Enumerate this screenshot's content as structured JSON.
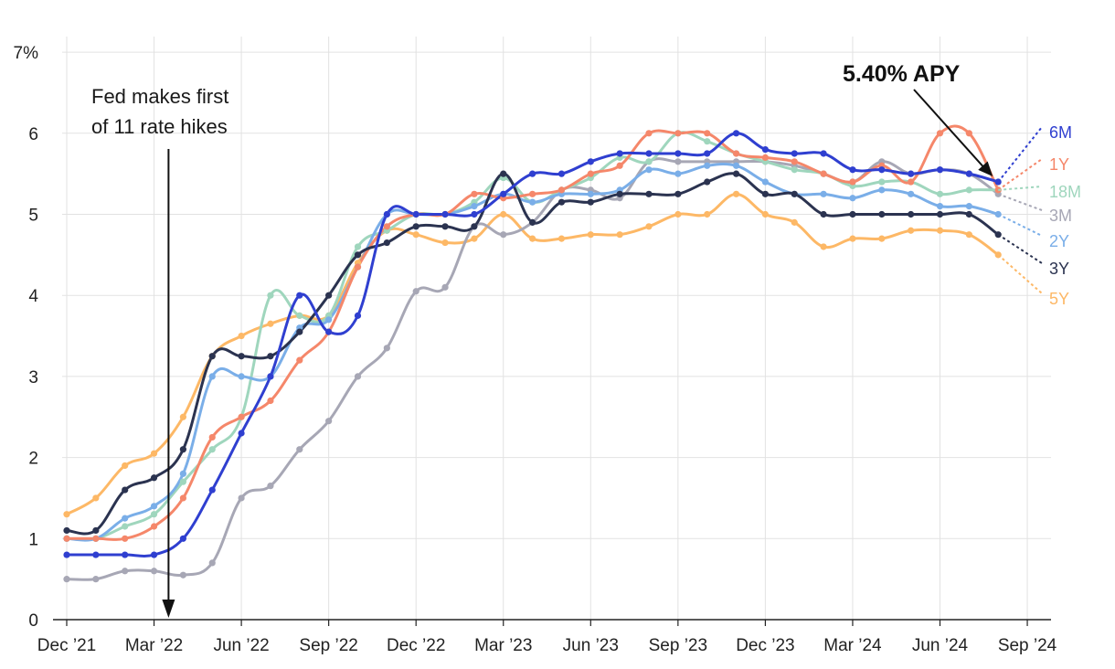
{
  "chart_data": {
    "type": "line",
    "x_format": "year-month",
    "y_ticks": [
      "0",
      "1",
      "2",
      "3",
      "4",
      "5",
      "6",
      "7%"
    ],
    "ylim": [
      0,
      7
    ],
    "x_ticks": [
      {
        "date": "2021-12",
        "label": "Dec ’21"
      },
      {
        "date": "2022-03",
        "label": "Mar ’22"
      },
      {
        "date": "2022-06",
        "label": "Jun ’22"
      },
      {
        "date": "2022-09",
        "label": "Sep ’22"
      },
      {
        "date": "2022-12",
        "label": "Dec ’22"
      },
      {
        "date": "2023-03",
        "label": "Mar ’23"
      },
      {
        "date": "2023-06",
        "label": "Jun ’23"
      },
      {
        "date": "2023-09",
        "label": "Sep ’23"
      },
      {
        "date": "2023-12",
        "label": "Dec ’23"
      },
      {
        "date": "2024-03",
        "label": "Mar ’24"
      },
      {
        "date": "2024-06",
        "label": "Jun ’24"
      },
      {
        "date": "2024-09",
        "label": "Sep ’24"
      }
    ],
    "grid": "vertical",
    "annotations": {
      "fed_line1": "Fed makes first",
      "fed_line2": "of 11 rate hikes",
      "fed_date": "2022-04",
      "apy_label": "5.40% APY"
    },
    "series": [
      {
        "name": "6M",
        "color": "#2f3fd0",
        "x": [
          "2021-12",
          "2022-01",
          "2022-02",
          "2022-03",
          "2022-04",
          "2022-05",
          "2022-06",
          "2022-07",
          "2022-08",
          "2022-09",
          "2022-10",
          "2022-11",
          "2022-12",
          "2023-01",
          "2023-02",
          "2023-03",
          "2023-04",
          "2023-05",
          "2023-06",
          "2023-07",
          "2023-08",
          "2023-09",
          "2023-10",
          "2023-11",
          "2023-12",
          "2024-01",
          "2024-02",
          "2024-03",
          "2024-04",
          "2024-05",
          "2024-06",
          "2024-07",
          "2024-08"
        ],
        "y": [
          0.8,
          0.8,
          0.8,
          0.8,
          1.0,
          1.6,
          2.3,
          3.0,
          4.0,
          3.55,
          3.75,
          5.0,
          5.0,
          5.0,
          5.0,
          5.25,
          5.5,
          5.5,
          5.65,
          5.75,
          5.75,
          5.75,
          5.75,
          6.0,
          5.8,
          5.75,
          5.75,
          5.55,
          5.55,
          5.5,
          5.55,
          5.5,
          5.4
        ]
      },
      {
        "name": "1Y",
        "color": "#f5876a",
        "x": [
          "2021-12",
          "2022-01",
          "2022-02",
          "2022-03",
          "2022-04",
          "2022-05",
          "2022-06",
          "2022-07",
          "2022-08",
          "2022-09",
          "2022-10",
          "2022-11",
          "2022-12",
          "2023-01",
          "2023-02",
          "2023-03",
          "2023-04",
          "2023-05",
          "2023-06",
          "2023-07",
          "2023-08",
          "2023-09",
          "2023-10",
          "2023-11",
          "2023-12",
          "2024-01",
          "2024-02",
          "2024-03",
          "2024-04",
          "2024-05",
          "2024-06",
          "2024-07",
          "2024-08"
        ],
        "y": [
          1.0,
          1.0,
          1.0,
          1.15,
          1.5,
          2.25,
          2.5,
          2.7,
          3.2,
          3.55,
          4.35,
          4.85,
          5.0,
          5.0,
          5.25,
          5.2,
          5.25,
          5.3,
          5.5,
          5.6,
          6.0,
          6.0,
          6.0,
          5.75,
          5.7,
          5.65,
          5.5,
          5.4,
          5.6,
          5.4,
          6.0,
          6.0,
          5.3
        ]
      },
      {
        "name": "18M",
        "color": "#9fd6bd",
        "x": [
          "2021-12",
          "2022-01",
          "2022-02",
          "2022-03",
          "2022-04",
          "2022-05",
          "2022-06",
          "2022-07",
          "2022-08",
          "2022-09",
          "2022-10",
          "2022-11",
          "2022-12",
          "2023-01",
          "2023-02",
          "2023-03",
          "2023-04",
          "2023-05",
          "2023-06",
          "2023-07",
          "2023-08",
          "2023-09",
          "2023-10",
          "2023-11",
          "2023-12",
          "2024-01",
          "2024-02",
          "2024-03",
          "2024-04",
          "2024-05",
          "2024-06",
          "2024-07",
          "2024-08"
        ],
        "y": [
          1.0,
          1.0,
          1.15,
          1.3,
          1.7,
          2.1,
          2.5,
          4.0,
          3.75,
          3.75,
          4.6,
          4.8,
          5.0,
          5.0,
          5.15,
          5.45,
          5.15,
          5.3,
          5.45,
          5.7,
          5.65,
          6.0,
          5.9,
          5.75,
          5.65,
          5.55,
          5.5,
          5.35,
          5.4,
          5.4,
          5.25,
          5.3,
          5.3
        ]
      },
      {
        "name": "3M",
        "color": "#a7a7b5",
        "x": [
          "2021-12",
          "2022-01",
          "2022-02",
          "2022-03",
          "2022-04",
          "2022-05",
          "2022-06",
          "2022-07",
          "2022-08",
          "2022-09",
          "2022-10",
          "2022-11",
          "2022-12",
          "2023-01",
          "2023-02",
          "2023-03",
          "2023-04",
          "2023-05",
          "2023-06",
          "2023-07",
          "2023-08",
          "2023-09",
          "2023-10",
          "2023-11",
          "2023-12",
          "2024-01",
          "2024-02",
          "2024-03",
          "2024-04",
          "2024-05",
          "2024-06",
          "2024-07",
          "2024-08"
        ],
        "y": [
          0.5,
          0.5,
          0.6,
          0.6,
          0.55,
          0.7,
          1.5,
          1.65,
          2.1,
          2.45,
          3.0,
          3.35,
          4.05,
          4.1,
          4.85,
          4.75,
          4.9,
          5.3,
          5.3,
          5.2,
          5.65,
          5.65,
          5.65,
          5.65,
          5.65,
          5.6,
          5.5,
          5.4,
          5.65,
          5.5,
          5.55,
          5.5,
          5.25
        ]
      },
      {
        "name": "2Y",
        "color": "#7aaee8",
        "x": [
          "2021-12",
          "2022-01",
          "2022-02",
          "2022-03",
          "2022-04",
          "2022-05",
          "2022-06",
          "2022-07",
          "2022-08",
          "2022-09",
          "2022-10",
          "2022-11",
          "2022-12",
          "2023-01",
          "2023-02",
          "2023-03",
          "2023-04",
          "2023-05",
          "2023-06",
          "2023-07",
          "2023-08",
          "2023-09",
          "2023-10",
          "2023-11",
          "2023-12",
          "2024-01",
          "2024-02",
          "2024-03",
          "2024-04",
          "2024-05",
          "2024-06",
          "2024-07",
          "2024-08"
        ],
        "y": [
          1.0,
          1.0,
          1.25,
          1.4,
          1.8,
          3.0,
          3.0,
          3.0,
          3.6,
          3.7,
          4.35,
          5.0,
          5.0,
          5.0,
          5.1,
          5.25,
          5.15,
          5.25,
          5.25,
          5.3,
          5.55,
          5.5,
          5.6,
          5.6,
          5.4,
          5.25,
          5.25,
          5.2,
          5.3,
          5.25,
          5.1,
          5.1,
          5.0
        ]
      },
      {
        "name": "3Y",
        "color": "#2b3350",
        "x": [
          "2021-12",
          "2022-01",
          "2022-02",
          "2022-03",
          "2022-04",
          "2022-05",
          "2022-06",
          "2022-07",
          "2022-08",
          "2022-09",
          "2022-10",
          "2022-11",
          "2022-12",
          "2023-01",
          "2023-02",
          "2023-03",
          "2023-04",
          "2023-05",
          "2023-06",
          "2023-07",
          "2023-08",
          "2023-09",
          "2023-10",
          "2023-11",
          "2023-12",
          "2024-01",
          "2024-02",
          "2024-03",
          "2024-04",
          "2024-05",
          "2024-06",
          "2024-07",
          "2024-08"
        ],
        "y": [
          1.1,
          1.1,
          1.6,
          1.75,
          2.1,
          3.25,
          3.25,
          3.25,
          3.55,
          4.0,
          4.5,
          4.65,
          4.85,
          4.85,
          4.85,
          5.5,
          4.9,
          5.15,
          5.15,
          5.25,
          5.25,
          5.25,
          5.4,
          5.5,
          5.25,
          5.25,
          5.0,
          5.0,
          5.0,
          5.0,
          5.0,
          5.0,
          4.75
        ]
      },
      {
        "name": "5Y",
        "color": "#fdb866",
        "x": [
          "2021-12",
          "2022-01",
          "2022-02",
          "2022-03",
          "2022-04",
          "2022-05",
          "2022-06",
          "2022-07",
          "2022-08",
          "2022-09",
          "2022-10",
          "2022-11",
          "2022-12",
          "2023-01",
          "2023-02",
          "2023-03",
          "2023-04",
          "2023-05",
          "2023-06",
          "2023-07",
          "2023-08",
          "2023-09",
          "2023-10",
          "2023-11",
          "2023-12",
          "2024-01",
          "2024-02",
          "2024-03",
          "2024-04",
          "2024-05",
          "2024-06",
          "2024-07",
          "2024-08"
        ],
        "y": [
          1.3,
          1.5,
          1.9,
          2.05,
          2.5,
          3.25,
          3.5,
          3.65,
          3.75,
          3.75,
          4.4,
          4.8,
          4.75,
          4.65,
          4.7,
          5.0,
          4.7,
          4.7,
          4.75,
          4.75,
          4.85,
          5.0,
          5.0,
          5.25,
          5.0,
          4.9,
          4.6,
          4.7,
          4.7,
          4.8,
          4.8,
          4.75,
          4.5
        ]
      }
    ]
  }
}
